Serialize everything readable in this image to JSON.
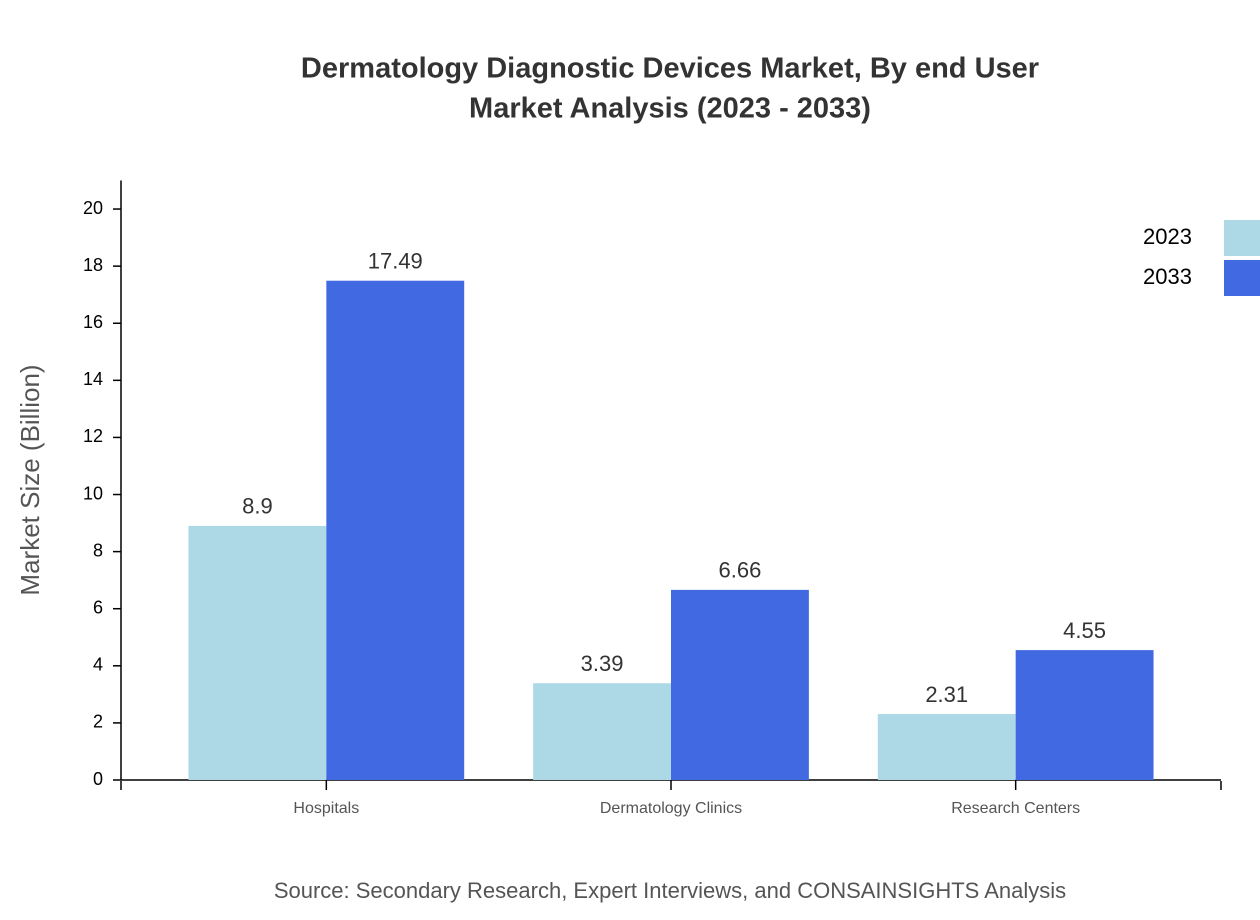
{
  "chart_data": {
    "type": "bar",
    "title": "Dermatology Diagnostic Devices Market, By end User",
    "subtitle": "Market Analysis (2023 - 2033)",
    "y_label": "Market Size (Billion)",
    "source": "Source: Secondary Research, Expert Interviews, and CONSAINSIGHTS Analysis",
    "categories": [
      "Hospitals",
      "Dermatology Clinics",
      "Research Centers"
    ],
    "series": [
      {
        "name": "2023",
        "color": "#add8e6",
        "values": [
          8.9,
          3.39,
          2.31
        ]
      },
      {
        "name": "2033",
        "color": "#4169e1",
        "values": [
          17.49,
          6.66,
          4.55
        ]
      }
    ],
    "ylim": [
      0,
      21
    ],
    "yticks": [
      0,
      2,
      4,
      6,
      8,
      10,
      12,
      14,
      16,
      18,
      20
    ],
    "legend": "top-right"
  }
}
